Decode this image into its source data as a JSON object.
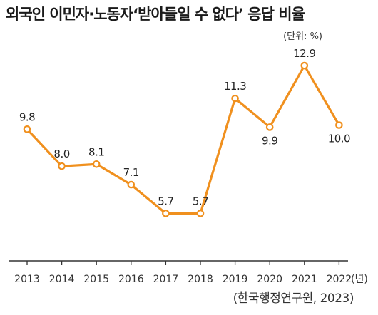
{
  "title": "외국인 이민자·노동자‘받아들일 수 없다’ 응답 비율",
  "unit_note": "(단위: %)",
  "source": "(한국행정연구원, 2023)",
  "colors": {
    "line": "#f0901e",
    "marker_fill": "#ffffff",
    "axis": "#333333"
  },
  "chart_data": {
    "type": "line",
    "title": "외국인 이민자·노동자‘받아들일 수 없다’ 응답 비율",
    "unit": "(단위: %)",
    "x_unit_label": "(년)",
    "categories": [
      "2013",
      "2014",
      "2015",
      "2016",
      "2017",
      "2018",
      "2019",
      "2020",
      "2021",
      "2022"
    ],
    "series": [
      {
        "values": [
          9.8,
          8.0,
          8.1,
          7.1,
          5.7,
          5.7,
          11.3,
          9.9,
          12.9,
          10.0
        ]
      }
    ],
    "labels": [
      "9.8",
      "8.0",
      "8.1",
      "7.1",
      "5.7",
      "5.7",
      "11.3",
      "9.9",
      "12.9",
      "10.0"
    ],
    "grid": false,
    "legend": "none"
  }
}
